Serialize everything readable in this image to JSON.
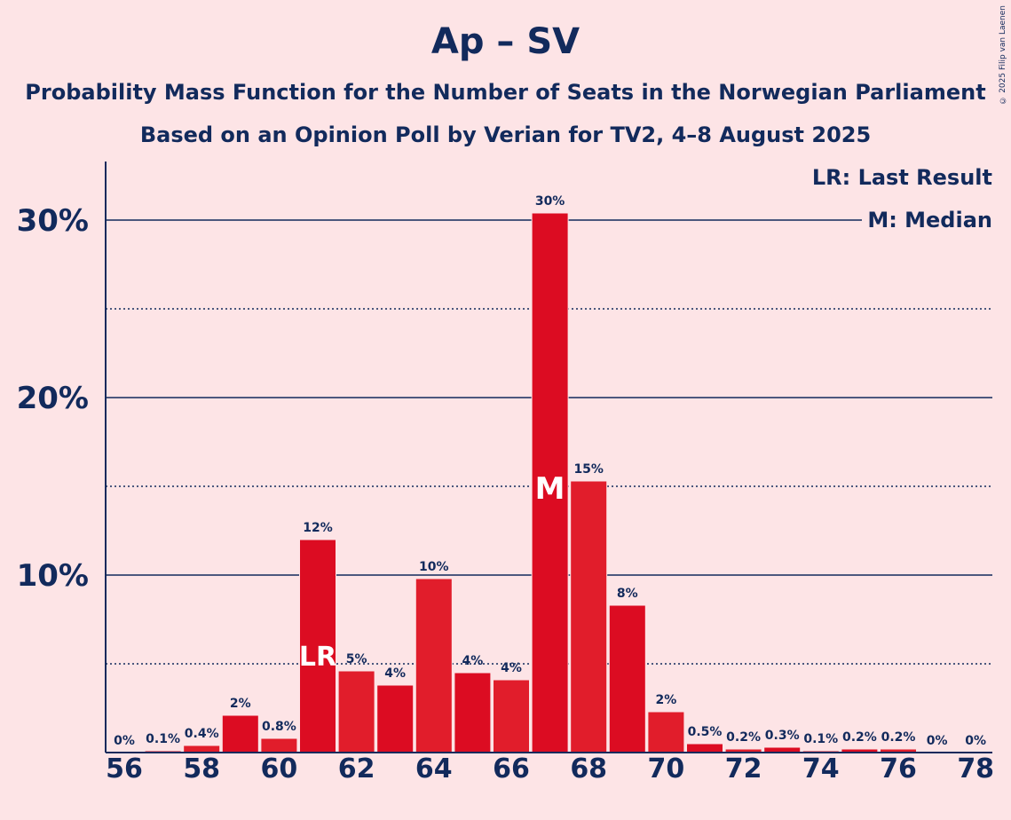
{
  "title": "Ap – SV",
  "subtitle1": "Probability Mass Function for the Number of Seats in the Norwegian Parliament",
  "subtitle2": "Based on an Opinion Poll by Verian for TV2, 4–8 August 2025",
  "copyright": "© 2025 Filip van Laenen",
  "legend": {
    "lr": "LR: Last Result",
    "m": "M: Median"
  },
  "colors": {
    "background": "#fde4e6",
    "bar_dark": "#dc0c22",
    "bar_light": "#e11d2b",
    "text": "#122a5c"
  },
  "chart_data": {
    "type": "bar",
    "x": [
      56,
      57,
      58,
      59,
      60,
      61,
      62,
      63,
      64,
      65,
      66,
      67,
      68,
      69,
      70,
      71,
      72,
      73,
      74,
      75,
      76,
      77,
      78
    ],
    "values": [
      0,
      0.1,
      0.4,
      2.1,
      0.8,
      12.0,
      4.6,
      3.8,
      9.8,
      4.5,
      4.1,
      30.4,
      15.3,
      8.3,
      2.3,
      0.5,
      0.2,
      0.3,
      0.1,
      0.2,
      0.2,
      0,
      0
    ],
    "data_labels": [
      "0%",
      "0.1%",
      "0.4%",
      "2%",
      "0.8%",
      "12%",
      "5%",
      "4%",
      "10%",
      "4%",
      "4%",
      "30%",
      "15%",
      "8%",
      "2%",
      "0.5%",
      "0.2%",
      "0.3%",
      "0.1%",
      "0.2%",
      "0.2%",
      "0%",
      "0%"
    ],
    "x_ticks": [
      56,
      58,
      60,
      62,
      64,
      66,
      68,
      70,
      72,
      74,
      76,
      78
    ],
    "y_ticks": [
      10,
      20,
      30
    ],
    "y_tick_labels": [
      "10%",
      "20%",
      "30%"
    ],
    "ylim": [
      0,
      33
    ],
    "last_result_seat": 61,
    "last_result_label": "LR",
    "median_seat": 67,
    "median_label": "M"
  }
}
